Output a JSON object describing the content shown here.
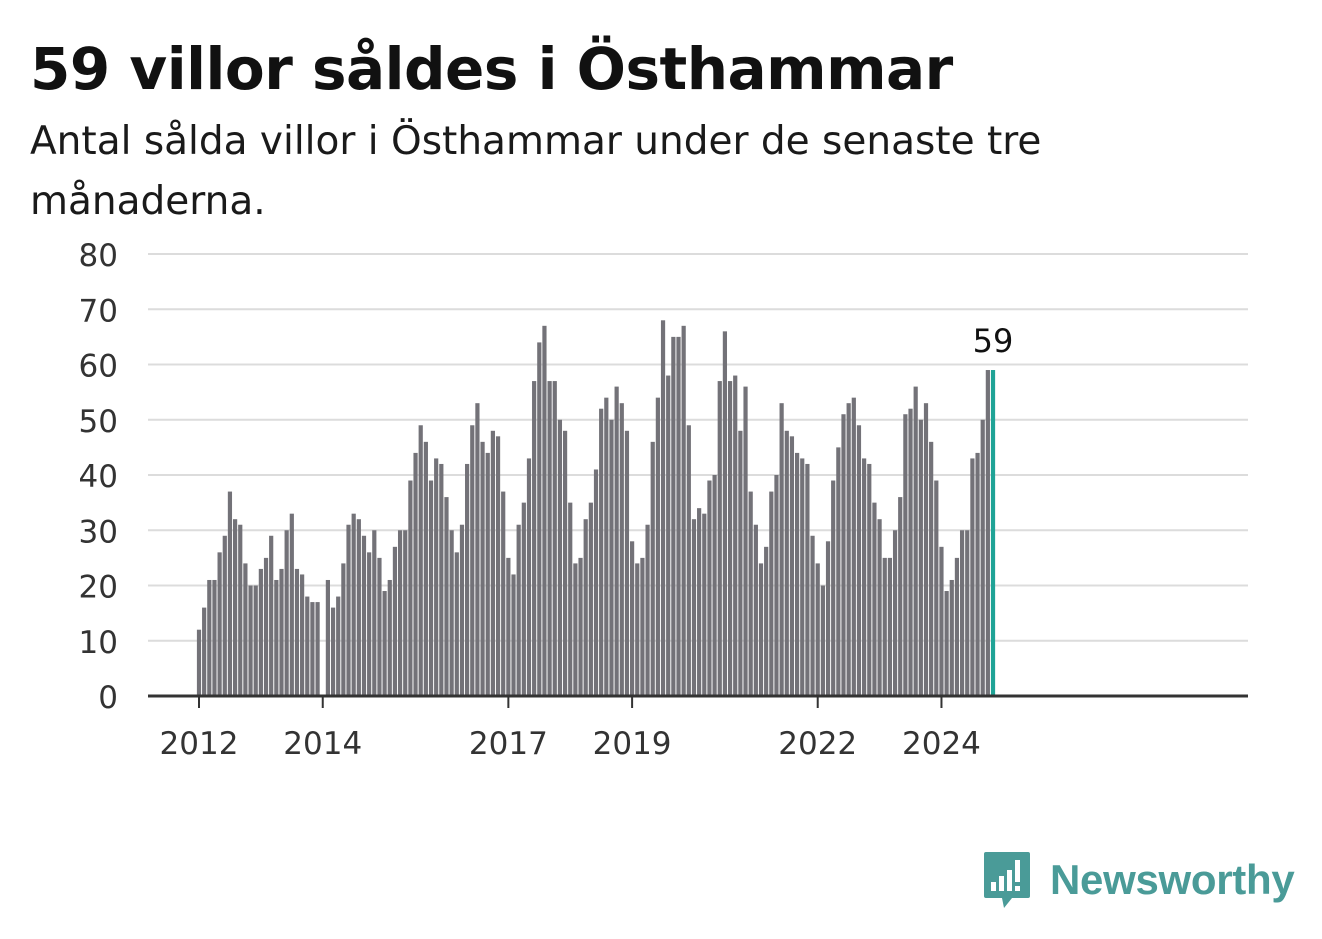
{
  "header": {
    "title": "59 villor såldes i Östhammar",
    "subtitle": "Antal sålda villor i Östhammar under de senaste tre månaderna."
  },
  "branding": {
    "name": "Newsworthy",
    "icon": "newsworthy-logo-icon",
    "color": "#4a9b98"
  },
  "colors": {
    "bar": "#737278",
    "highlight": "#1fa396",
    "grid": "#dcdcdc",
    "axis": "#333333"
  },
  "chart_data": {
    "type": "bar",
    "ylim": [
      0,
      80
    ],
    "yticks": [
      0,
      10,
      20,
      30,
      40,
      50,
      60,
      70,
      80
    ],
    "xticks": [
      "2012",
      "2014",
      "2017",
      "2019",
      "2022",
      "2024"
    ],
    "grid": true,
    "highlight_label": "59",
    "start": "2012-01",
    "values": [
      12,
      16,
      21,
      21,
      26,
      29,
      37,
      32,
      31,
      24,
      20,
      20,
      23,
      25,
      29,
      21,
      23,
      30,
      33,
      23,
      22,
      18,
      17,
      17,
      0,
      21,
      16,
      18,
      24,
      31,
      33,
      32,
      29,
      26,
      30,
      25,
      19,
      21,
      27,
      30,
      30,
      39,
      44,
      49,
      46,
      39,
      43,
      42,
      36,
      30,
      26,
      31,
      42,
      49,
      53,
      46,
      44,
      48,
      47,
      37,
      25,
      22,
      31,
      35,
      43,
      57,
      64,
      67,
      57,
      57,
      50,
      48,
      35,
      24,
      25,
      32,
      35,
      41,
      52,
      54,
      50,
      56,
      53,
      48,
      28,
      24,
      25,
      31,
      46,
      54,
      68,
      58,
      65,
      65,
      67,
      49,
      32,
      34,
      33,
      39,
      40,
      57,
      66,
      57,
      58,
      48,
      56,
      37,
      31,
      24,
      27,
      37,
      40,
      53,
      48,
      47,
      44,
      43,
      42,
      29,
      24,
      20,
      28,
      39,
      45,
      51,
      53,
      54,
      49,
      43,
      42,
      35,
      32,
      25,
      25,
      30,
      36,
      51,
      52,
      56,
      50,
      53,
      46,
      39,
      27,
      19,
      21,
      25,
      30,
      30,
      43,
      44,
      50,
      59,
      59
    ]
  }
}
